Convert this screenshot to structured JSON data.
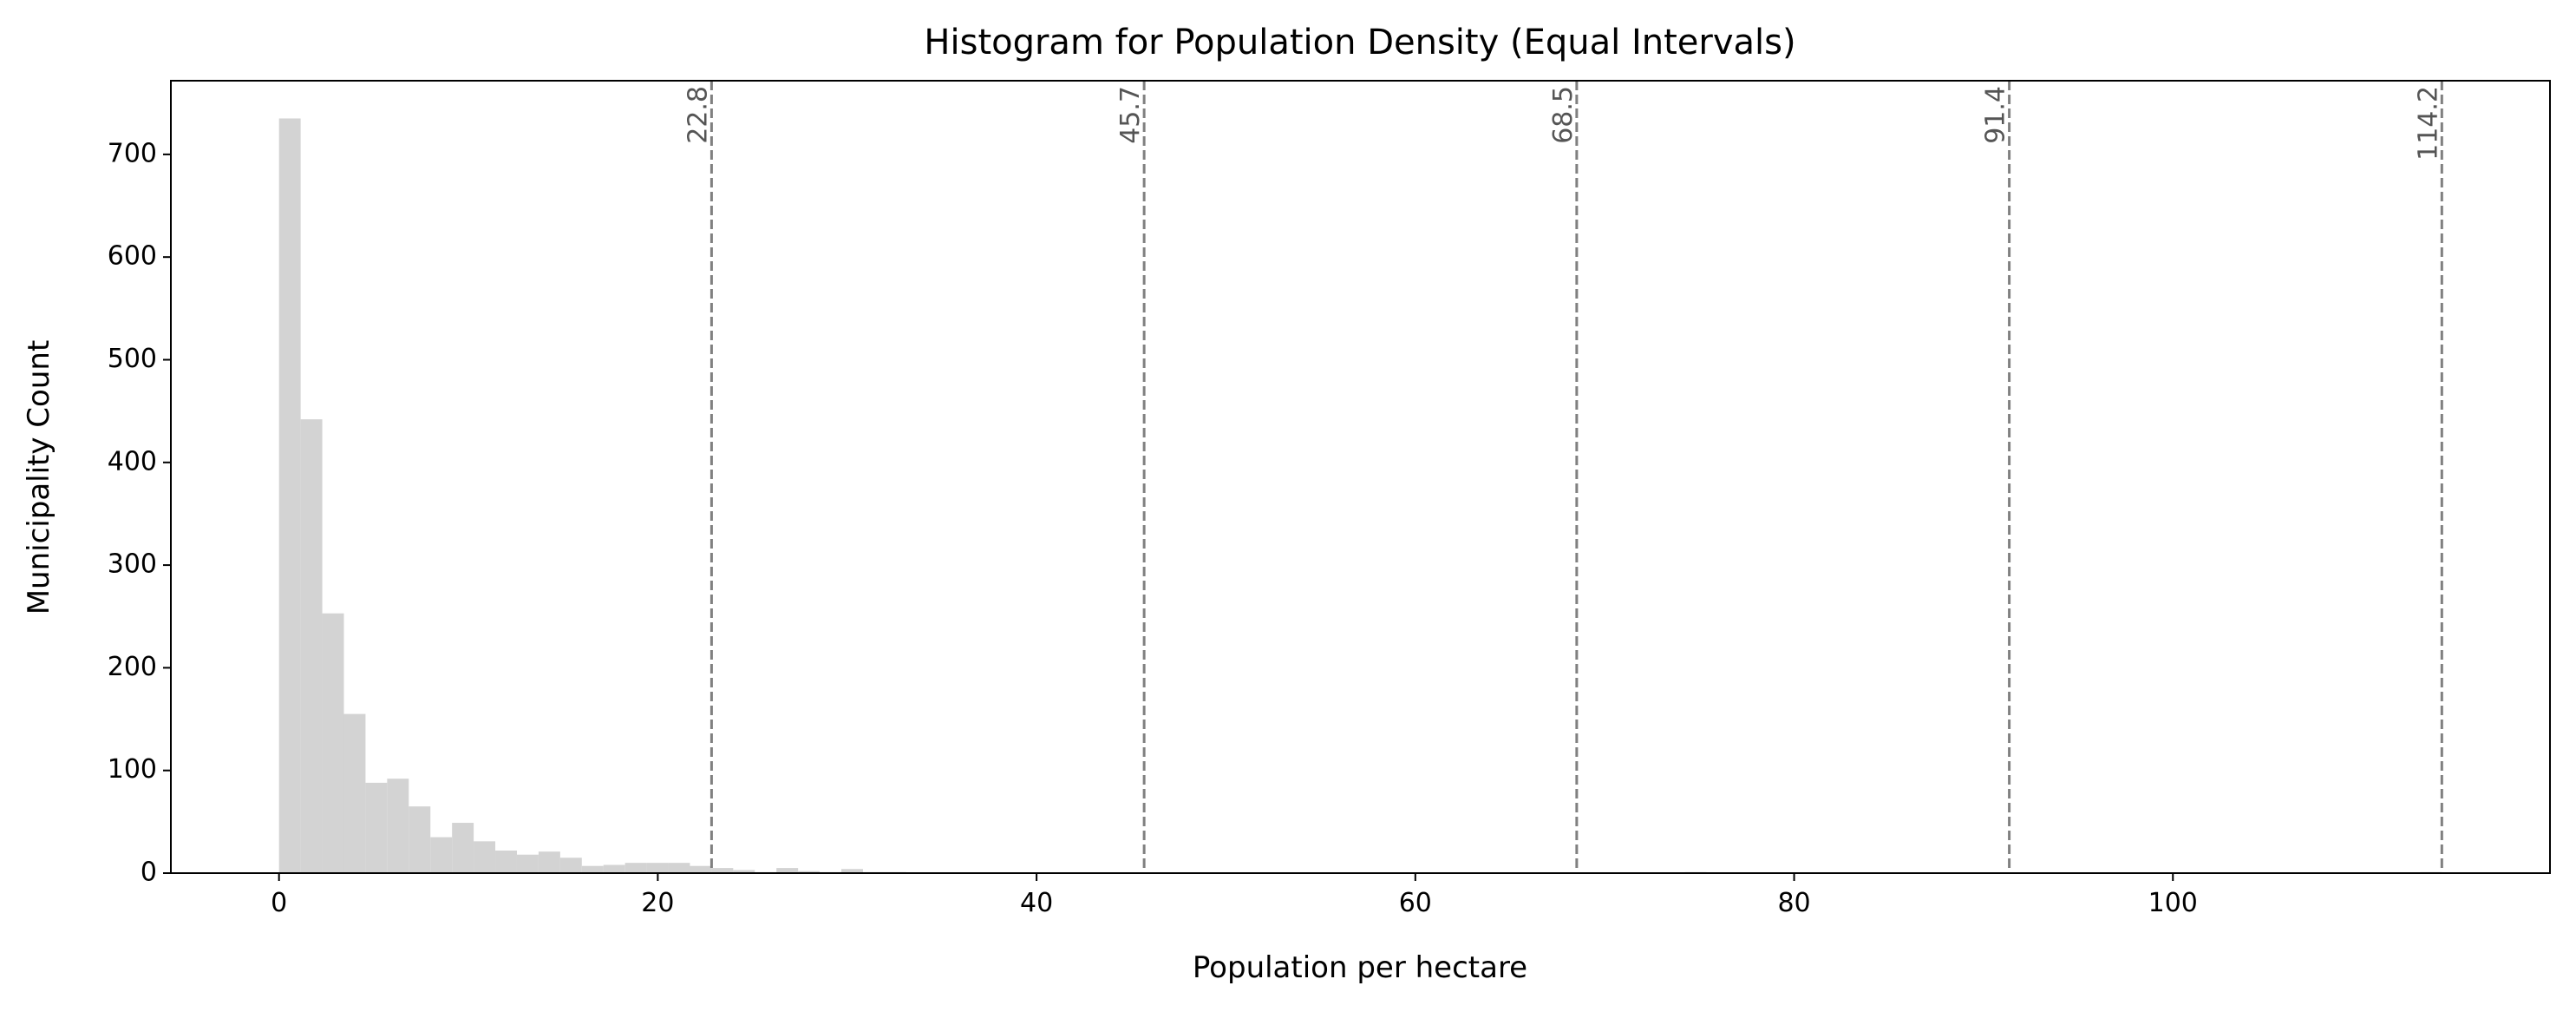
{
  "chart_data": {
    "type": "histogram",
    "title": "Histogram for Population Density (Equal Intervals)",
    "x_label": "Population per hectare",
    "y_label": "Municipality Count",
    "color": "#d3d3d3",
    "bins": [
      0,
      1.142,
      2.284,
      3.426,
      4.568,
      5.71,
      6.852,
      7.994,
      9.136,
      10.278,
      11.42,
      12.562,
      13.704,
      14.846,
      15.988,
      17.13,
      18.272,
      19.414,
      20.556,
      21.698,
      22.84,
      23.982,
      25.124,
      26.266,
      27.408,
      28.55,
      29.692,
      30.834,
      31.976,
      33.118,
      34.26,
      35.402,
      36.544,
      37.686,
      38.828,
      39.97,
      41.112,
      42.254,
      43.396,
      44.538,
      45.68,
      46.822,
      47.964,
      49.106,
      50.248,
      51.39,
      52.532,
      53.674,
      54.816,
      55.958,
      57.1,
      58.242,
      59.384,
      60.526,
      61.668,
      62.81,
      63.952,
      65.094,
      66.236,
      67.378,
      68.52,
      69.662,
      70.804,
      71.946,
      73.088,
      74.23,
      75.372,
      76.514,
      77.656,
      78.798,
      79.94,
      81.082,
      82.224,
      83.366,
      84.508,
      85.65,
      86.792,
      87.934,
      89.076,
      90.218,
      91.36,
      92.502,
      93.644,
      94.786,
      95.928,
      97.07,
      98.212,
      99.354,
      100.496,
      101.638,
      102.78,
      103.922,
      105.064,
      106.206,
      107.348,
      108.49,
      109.632,
      110.774,
      111.916,
      113.058,
      114.2
    ],
    "values": [
      735,
      442,
      253,
      155,
      88,
      92,
      65,
      35,
      49,
      31,
      22,
      18,
      21,
      15,
      7,
      8,
      10,
      10,
      10,
      7,
      5,
      3,
      1,
      5,
      2,
      1,
      4,
      1,
      1,
      0,
      0,
      0,
      0,
      0,
      0,
      0,
      0,
      0,
      0,
      0,
      0,
      0,
      0,
      0,
      0,
      0,
      0,
      0,
      0,
      0,
      0,
      0,
      0,
      0,
      0,
      0,
      0,
      0,
      0,
      0,
      0,
      0,
      0,
      0,
      0,
      1,
      0,
      0,
      0,
      0,
      0,
      0,
      0,
      0,
      0,
      0,
      0,
      0,
      0,
      0,
      0,
      0,
      0,
      0,
      0,
      0,
      0,
      0,
      0,
      0,
      0,
      0,
      0,
      0,
      0,
      0,
      0,
      0,
      0,
      1
    ],
    "breaks": [
      {
        "value": 22.84,
        "label": "22.8"
      },
      {
        "value": 45.68,
        "label": "45.7"
      },
      {
        "value": 68.52,
        "label": "68.5"
      },
      {
        "value": 91.36,
        "label": "91.4"
      },
      {
        "value": 114.2,
        "label": "114.2"
      }
    ],
    "break_color": "#808080",
    "xlim": [
      -5.71,
      119.91
    ],
    "ylim": [
      0,
      771.75
    ],
    "xticks": [
      0,
      20,
      40,
      60,
      80,
      100
    ],
    "yticks": [
      0,
      100,
      200,
      300,
      400,
      500,
      600,
      700
    ]
  }
}
